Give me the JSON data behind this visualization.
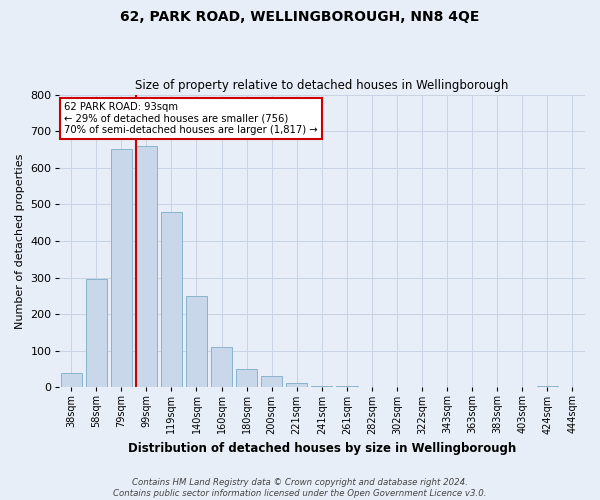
{
  "title": "62, PARK ROAD, WELLINGBOROUGH, NN8 4QE",
  "subtitle": "Size of property relative to detached houses in Wellingborough",
  "xlabel": "Distribution of detached houses by size in Wellingborough",
  "ylabel": "Number of detached properties",
  "footer_line1": "Contains HM Land Registry data © Crown copyright and database right 2024.",
  "footer_line2": "Contains public sector information licensed under the Open Government Licence v3.0.",
  "categories": [
    "38sqm",
    "58sqm",
    "79sqm",
    "99sqm",
    "119sqm",
    "140sqm",
    "160sqm",
    "180sqm",
    "200sqm",
    "221sqm",
    "241sqm",
    "261sqm",
    "282sqm",
    "302sqm",
    "322sqm",
    "343sqm",
    "363sqm",
    "383sqm",
    "403sqm",
    "424sqm",
    "444sqm"
  ],
  "values": [
    40,
    295,
    650,
    660,
    480,
    250,
    110,
    50,
    30,
    12,
    5,
    3,
    2,
    2,
    2,
    1,
    1,
    1,
    0,
    5,
    0
  ],
  "bar_color": "#c8d8ea",
  "bar_edge_color": "#8ab4cc",
  "grid_color": "#c8d4e4",
  "background_color": "#e8eef8",
  "property_line_label": "62 PARK ROAD: 93sqm",
  "annotation_line1": "← 29% of detached houses are smaller (756)",
  "annotation_line2": "70% of semi-detached houses are larger (1,817) →",
  "annotation_box_color": "#ffffff",
  "annotation_border_color": "#cc0000",
  "red_line_color": "#cc0000",
  "ylim": [
    0,
    800
  ],
  "yticks": [
    0,
    100,
    200,
    300,
    400,
    500,
    600,
    700,
    800
  ]
}
